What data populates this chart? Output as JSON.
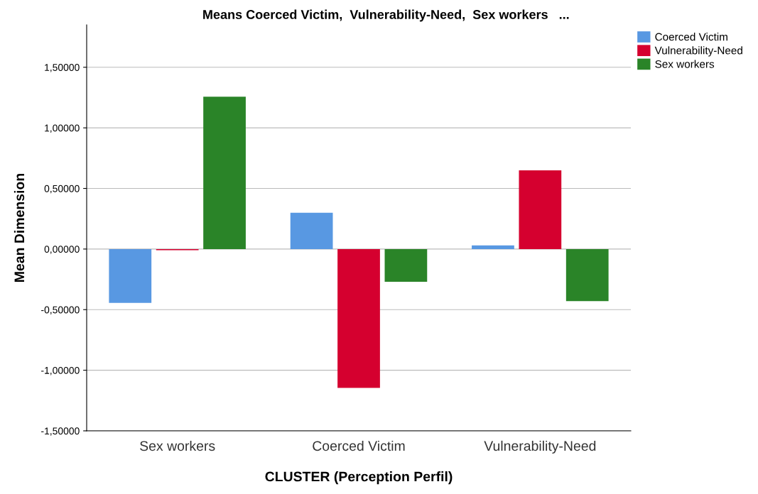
{
  "chart_data": {
    "type": "bar",
    "title": "Means Coerced Victim,  Vulnerability-Need,  Sex workers   ...",
    "xlabel": "CLUSTER (Perception Perfil)",
    "ylabel": "Mean Dimension",
    "categories": [
      "Sex workers",
      "Coerced Victim",
      "Vulnerability-Need"
    ],
    "series": [
      {
        "name": "Coerced Victim",
        "color": "#5898e2",
        "values": [
          -0.445,
          0.3,
          0.03
        ]
      },
      {
        "name": "Vulnerability-Need",
        "color": "#d5002f",
        "values": [
          -0.01,
          -1.146,
          0.65
        ]
      },
      {
        "name": "Sex workers",
        "color": "#2a8428",
        "values": [
          1.257,
          -0.27,
          -0.43
        ]
      }
    ],
    "ylim": [
      -1.5,
      1.85
    ],
    "yticks": [
      {
        "value": -1.5,
        "label": "-1,50000"
      },
      {
        "value": -1.0,
        "label": "-1,00000"
      },
      {
        "value": -0.5,
        "label": "-0,50000"
      },
      {
        "value": 0,
        "label": "0,00000"
      },
      {
        "value": 0.5,
        "label": "0,50000"
      },
      {
        "value": 1.0,
        "label": "1,00000"
      },
      {
        "value": 1.5,
        "label": "1,50000"
      }
    ],
    "grid": "y",
    "legend": "top right"
  }
}
